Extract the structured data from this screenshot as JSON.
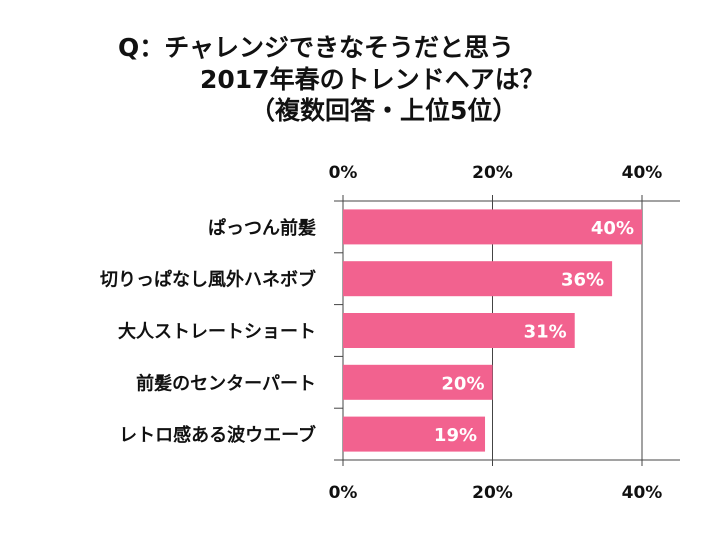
{
  "chart_data": {
    "type": "bar",
    "orientation": "horizontal",
    "title": [
      "Q：チャレンジできなそうだと思う",
      "2017年春のトレンドヘアは？",
      "（複数回答・上位5位）"
    ],
    "categories": [
      "ぱっつん前髪",
      "切りっぱなし風外ハネボブ",
      "大人ストレートショート",
      "前髪のセンターパート",
      "レトロ感ある波ウエーブ"
    ],
    "values": [
      40,
      36,
      31,
      20,
      19
    ],
    "data_labels": [
      "40%",
      "36%",
      "31%",
      "20%",
      "19%"
    ],
    "xlim": [
      0,
      44
    ],
    "xticks": [
      0,
      20,
      40
    ],
    "xtick_labels": [
      "0%",
      "20%",
      "40%"
    ],
    "tick_labels_position": "top-and-bottom",
    "grid": true,
    "bar_color": "#f2628f",
    "xlabel": "",
    "ylabel": ""
  }
}
